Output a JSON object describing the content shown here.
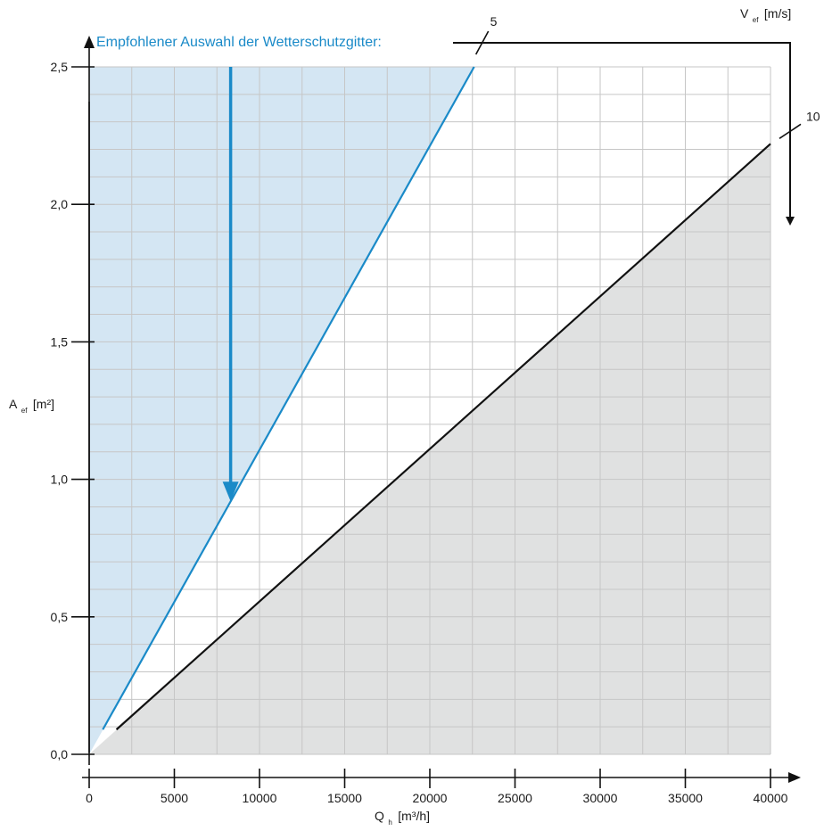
{
  "chart_data": {
    "type": "line",
    "note": "Empfohlener Auswahl der Wetterschutzgitter:",
    "x_axis": {
      "label_main": "Q",
      "label_sub": "h",
      "label_unit": "[m³/h]",
      "range": [
        0,
        40000
      ],
      "ticks": [
        0,
        5000,
        10000,
        15000,
        20000,
        25000,
        30000,
        35000,
        40000
      ],
      "tick_labels": [
        "0",
        "5000",
        "10000",
        "15000",
        "20000",
        "25000",
        "30000",
        "35000",
        "40000"
      ],
      "minor_step": 2500
    },
    "y_axis": {
      "label_main": "A",
      "label_sub": "ef",
      "label_unit": "[m²]",
      "range": [
        0,
        2.5
      ],
      "ticks": [
        0,
        0.5,
        1.0,
        1.5,
        2.0,
        2.5
      ],
      "tick_labels": [
        "0,0",
        "0,5",
        "1,0",
        "1,5",
        "2,0",
        "2,5"
      ],
      "minor_step": 0.1
    },
    "velocity_legend": {
      "label_main": "V",
      "label_sub": "ef",
      "label_unit": "[m/s]"
    },
    "series": [
      {
        "name": "5",
        "color": "#1a8ac8",
        "points": [
          [
            800,
            0.09
          ],
          [
            22600,
            2.5
          ]
        ]
      },
      {
        "name": "10",
        "color": "#111111",
        "points": [
          [
            1600,
            0.09
          ],
          [
            40000,
            2.22
          ]
        ]
      }
    ],
    "regions": [
      {
        "id": "recommended",
        "color": "#d4e6f3",
        "from_series": "5",
        "side": "above"
      },
      {
        "id": "high-velocity",
        "color": "#e0e1e1",
        "from_series": "10",
        "side": "below"
      }
    ],
    "grid": true,
    "arrow_target": [
      8200,
      0.92
    ],
    "colors": {
      "accent": "#1a8ac8",
      "axis": "#111111",
      "grid": "#c6c6c6"
    }
  }
}
